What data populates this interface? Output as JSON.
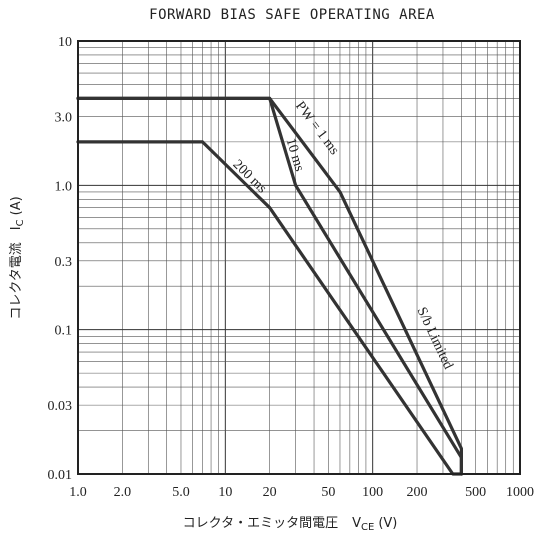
{
  "chart_data": {
    "type": "line",
    "title": "FORWARD BIAS SAFE OPERATING AREA",
    "xlabel": "コレクタ・エミッタ間電圧",
    "xlabel_symbol": "V",
    "xlabel_sub": "CE",
    "xlabel_unit": "(V)",
    "ylabel": "コレクタ電流",
    "ylabel_symbol": "I",
    "ylabel_sub": "C",
    "ylabel_unit": "(A)",
    "x_scale": "log",
    "y_scale": "log",
    "xlim": [
      1,
      1000
    ],
    "ylim": [
      0.01,
      10
    ],
    "grid": true,
    "x_ticks": [
      {
        "value": 1,
        "label": "1.0"
      },
      {
        "value": 2,
        "label": "2.0"
      },
      {
        "value": 5,
        "label": "5.0"
      },
      {
        "value": 10,
        "label": "10"
      },
      {
        "value": 20,
        "label": "20"
      },
      {
        "value": 50,
        "label": "50"
      },
      {
        "value": 100,
        "label": "100"
      },
      {
        "value": 200,
        "label": "200"
      },
      {
        "value": 500,
        "label": "500"
      },
      {
        "value": 1000,
        "label": "1000"
      }
    ],
    "y_ticks": [
      {
        "value": 10,
        "label": "10"
      },
      {
        "value": 3,
        "label": "3.0"
      },
      {
        "value": 1,
        "label": "1.0"
      },
      {
        "value": 0.3,
        "label": "0.3"
      },
      {
        "value": 0.1,
        "label": "0.1"
      },
      {
        "value": 0.03,
        "label": "0.03"
      },
      {
        "value": 0.01,
        "label": "0.01"
      }
    ],
    "series": [
      {
        "key": "pw1",
        "x": [
          1,
          20,
          60,
          400,
          400
        ],
        "y": [
          4.0,
          4.0,
          0.9,
          0.015,
          0.01
        ]
      },
      {
        "key": "pw10",
        "x": [
          1,
          20,
          30,
          400,
          400
        ],
        "y": [
          4.0,
          4.0,
          1.0,
          0.013,
          0.01
        ]
      },
      {
        "key": "pw200",
        "x": [
          1,
          7,
          20,
          350,
          400
        ],
        "y": [
          2.0,
          2.0,
          0.7,
          0.01,
          0.01
        ]
      }
    ],
    "annotations": [
      {
        "key": "pw1",
        "text": "PW = 1 ms",
        "x": 40,
        "y": 2.4
      },
      {
        "key": "pw10",
        "text": "10 ms",
        "x": 28,
        "y": 1.6
      },
      {
        "key": "pw200",
        "text": "200 ms",
        "x": 14,
        "y": 1.1
      },
      {
        "key": "sb",
        "text": "S/b Limited",
        "x": 250,
        "y": 0.085
      }
    ]
  }
}
